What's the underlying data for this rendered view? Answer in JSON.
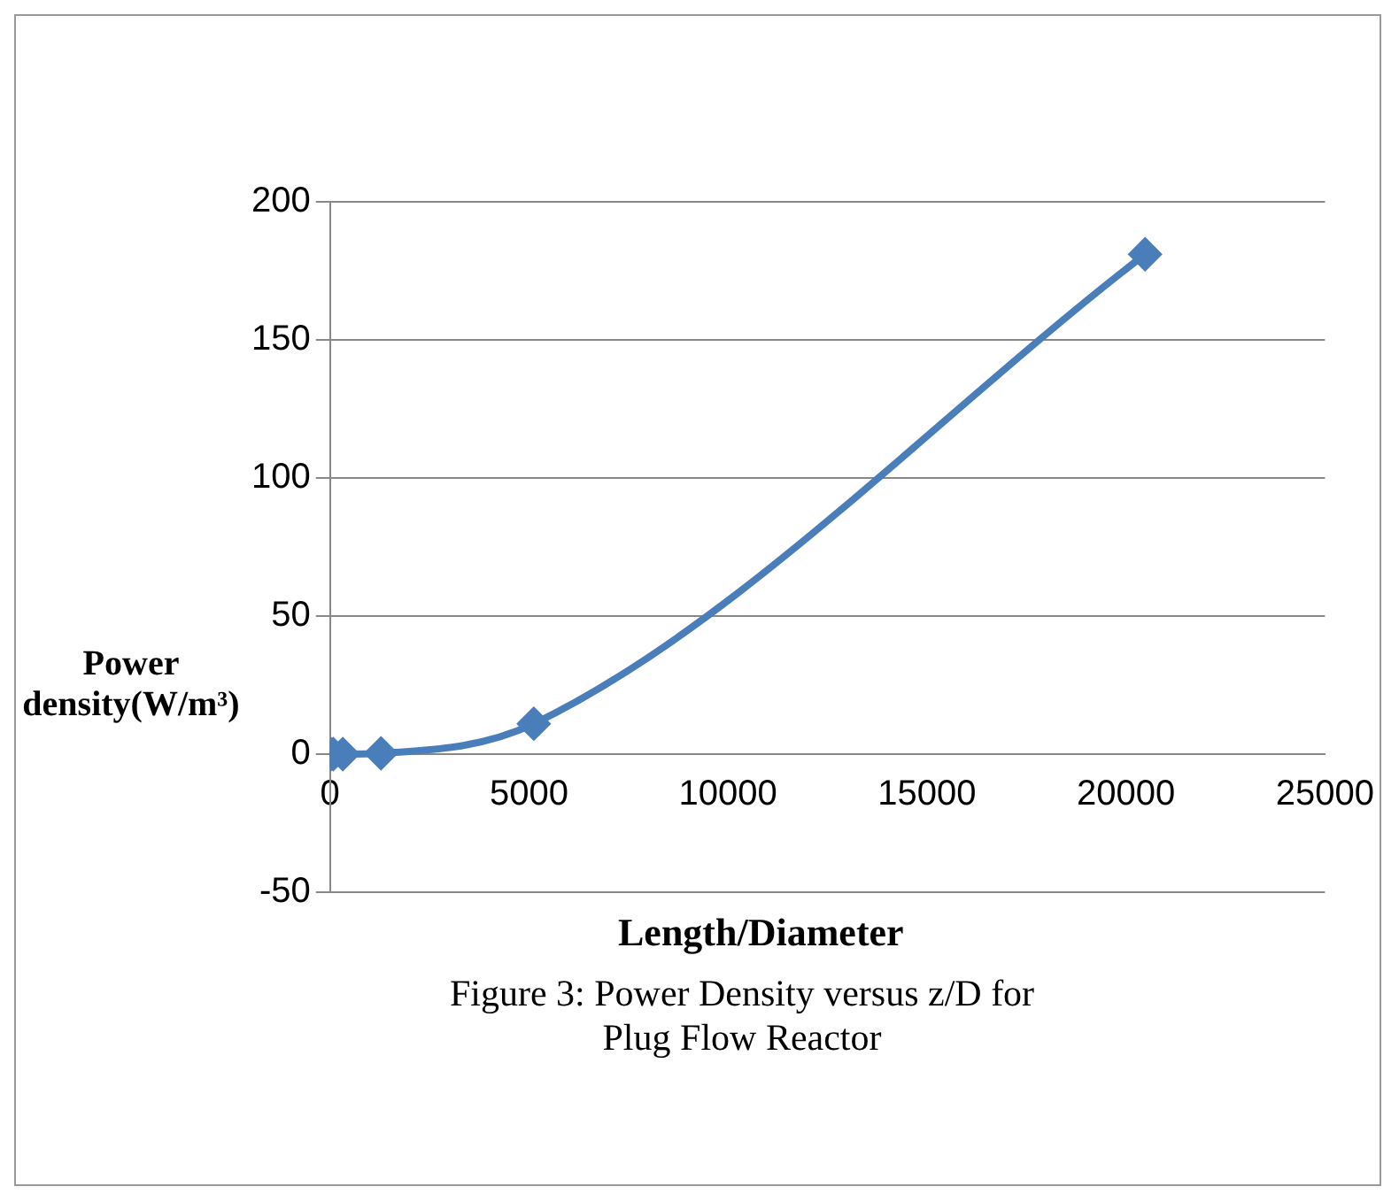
{
  "chart_data": {
    "type": "line",
    "xlabel": "Length/Diameter",
    "ylabel": "Power density(W/m³)",
    "annotations": [
      "Figure 3: Power Density versus z/D  for Plug Flow Reactor"
    ],
    "x": [
      20,
      80,
      320,
      1280,
      5120,
      20480
    ],
    "series": [
      {
        "color": "#4a7ebb",
        "values": [
          0,
          0,
          0,
          0.3,
          11,
          181
        ]
      }
    ],
    "xlim": [
      0,
      25000
    ],
    "xticks": [
      0,
      5000,
      10000,
      15000,
      20000,
      25000
    ],
    "ylim": [
      -50,
      200
    ],
    "yticks": [
      -50,
      0,
      50,
      100,
      150,
      200
    ],
    "grid": "y",
    "marker": "diamond",
    "line_style": "solid",
    "legend": false
  }
}
